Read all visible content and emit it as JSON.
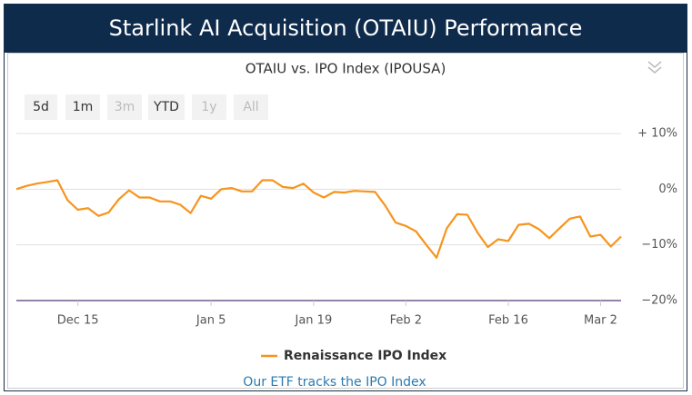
{
  "title": "Starlink AI Acquisition (OTAIU) Performance",
  "range_buttons": [
    {
      "label": "5d",
      "enabled": true
    },
    {
      "label": "1m",
      "enabled": true
    },
    {
      "label": "3m",
      "enabled": false
    },
    {
      "label": "YTD",
      "enabled": true
    },
    {
      "label": "1y",
      "enabled": false
    },
    {
      "label": "All",
      "enabled": false
    }
  ],
  "footer_link": "Our ETF tracks the IPO Index",
  "chart_data": {
    "type": "line",
    "title": "OTAIU vs. IPO Index (IPOUSA)",
    "categories": [
      null,
      null,
      null,
      null,
      null,
      null,
      "Dec 15",
      null,
      null,
      null,
      null,
      null,
      null,
      null,
      null,
      null,
      null,
      null,
      null,
      "Jan 5",
      null,
      null,
      null,
      null,
      null,
      null,
      null,
      null,
      null,
      "Jan 19",
      null,
      null,
      null,
      null,
      null,
      null,
      null,
      null,
      "Feb 2",
      null,
      null,
      null,
      null,
      null,
      null,
      null,
      null,
      null,
      "Feb 16",
      null,
      null,
      null,
      null,
      null,
      null,
      null,
      null,
      "Mar 2",
      null,
      null
    ],
    "series": [
      {
        "name": "Renaissance IPO Index",
        "color": "#f7941d",
        "values": [
          0,
          0.6,
          1.0,
          1.3,
          1.6,
          -2.0,
          -3.7,
          -3.4,
          -4.8,
          -4.2,
          -1.8,
          -0.2,
          -1.5,
          -1.5,
          -2.2,
          -2.2,
          -2.8,
          -4.3,
          -1.2,
          -1.7,
          0,
          0.2,
          -0.4,
          -0.4,
          1.6,
          1.6,
          0.4,
          0.2,
          1.0,
          -0.6,
          -1.5,
          -0.5,
          -0.6,
          -0.3,
          -0.4,
          -0.5,
          -3,
          -6,
          -6.6,
          -7.6,
          -10,
          -12.3,
          -7,
          -4.5,
          -4.6,
          -7.8,
          -10.4,
          -9,
          -9.3,
          -6.4,
          -6.2,
          -7.2,
          -8.8,
          -7,
          -5.3,
          -4.9,
          -8.5,
          -8.2,
          -10.3,
          -8.5
        ]
      }
    ],
    "ylim": [
      -20,
      10
    ],
    "yticks": [
      {
        "value": -20,
        "label": "−20%"
      },
      {
        "value": -10,
        "label": "−10%"
      },
      {
        "value": 0,
        "label": "0%"
      },
      {
        "value": 10,
        "label": "+ 10%"
      }
    ],
    "grid": true,
    "legend": "bottom"
  }
}
